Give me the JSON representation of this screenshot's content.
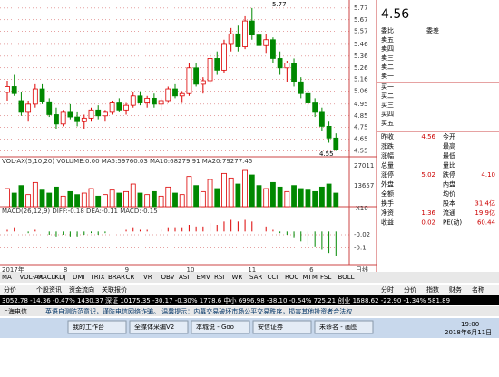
{
  "chart": {
    "info_line": "VOL-AX(5,10,20)  VOLUME:0.00  MA5:59760.03  MA10:68279.91  MA20:79277.45",
    "macd_line": "MACD(26,12,9)  DIFF:-0.18  DEA:-0.11  MACD:-0.15",
    "high_label": "5.77",
    "low_label": "4.55",
    "price_ylim": [
      4.5,
      5.8
    ],
    "price_ticks": [
      5.77,
      5.67,
      5.57,
      5.46,
      5.36,
      5.26,
      5.16,
      5.06,
      4.95,
      4.85,
      4.75,
      4.65,
      4.55
    ],
    "vol_ylim": [
      0,
      27011
    ],
    "vol_ticks": [
      27011,
      13657
    ],
    "vol_unit": "X10",
    "macd_ylim": [
      -0.2,
      0.1
    ],
    "macd_ticks": [
      -0.02,
      -0.1
    ],
    "x_labels": [
      "2017年",
      "8",
      "9",
      "10",
      "11",
      "6"
    ],
    "x_unit": "日线",
    "candles": [
      [
        5.05,
        5.15,
        4.98,
        5.1
      ],
      [
        5.1,
        5.2,
        5.02,
        5.04
      ],
      [
        4.98,
        5.05,
        4.85,
        4.88
      ],
      [
        4.88,
        4.98,
        4.8,
        4.95
      ],
      [
        4.95,
        5.12,
        4.92,
        5.08
      ],
      [
        5.08,
        5.12,
        4.95,
        4.97
      ],
      [
        4.97,
        5.0,
        4.84,
        4.86
      ],
      [
        4.86,
        4.92,
        4.74,
        4.78
      ],
      [
        4.78,
        4.9,
        4.76,
        4.88
      ],
      [
        4.88,
        4.95,
        4.82,
        4.84
      ],
      [
        4.84,
        4.88,
        4.76,
        4.8
      ],
      [
        4.8,
        4.86,
        4.74,
        4.83
      ],
      [
        4.83,
        4.92,
        4.8,
        4.9
      ],
      [
        4.9,
        4.94,
        4.82,
        4.85
      ],
      [
        4.85,
        4.9,
        4.8,
        4.88
      ],
      [
        4.88,
        4.98,
        4.86,
        4.96
      ],
      [
        4.96,
        5.0,
        4.88,
        4.9
      ],
      [
        4.9,
        4.96,
        4.86,
        4.94
      ],
      [
        4.94,
        5.05,
        4.92,
        5.02
      ],
      [
        5.02,
        5.06,
        4.94,
        4.96
      ],
      [
        4.96,
        5.02,
        4.92,
        5.0
      ],
      [
        5.0,
        5.04,
        4.92,
        4.95
      ],
      [
        4.95,
        5.0,
        4.9,
        4.98
      ],
      [
        4.98,
        5.1,
        4.96,
        5.08
      ],
      [
        5.08,
        5.12,
        5.0,
        5.02
      ],
      [
        5.02,
        5.06,
        4.96,
        5.04
      ],
      [
        5.04,
        5.3,
        5.02,
        5.26
      ],
      [
        5.26,
        5.3,
        5.1,
        5.12
      ],
      [
        5.12,
        5.18,
        5.04,
        5.15
      ],
      [
        5.15,
        5.38,
        5.12,
        5.34
      ],
      [
        5.34,
        5.4,
        5.2,
        5.24
      ],
      [
        5.24,
        5.5,
        5.22,
        5.46
      ],
      [
        5.46,
        5.6,
        5.4,
        5.55
      ],
      [
        5.55,
        5.62,
        5.4,
        5.44
      ],
      [
        5.44,
        5.7,
        5.42,
        5.66
      ],
      [
        5.66,
        5.77,
        5.5,
        5.54
      ],
      [
        5.54,
        5.6,
        5.4,
        5.45
      ],
      [
        5.45,
        5.55,
        5.38,
        5.5
      ],
      [
        5.5,
        5.52,
        5.3,
        5.34
      ],
      [
        5.34,
        5.4,
        5.2,
        5.26
      ],
      [
        5.26,
        5.32,
        5.14,
        5.3
      ],
      [
        5.3,
        5.34,
        5.1,
        5.14
      ],
      [
        5.14,
        5.18,
        5.0,
        5.04
      ],
      [
        5.04,
        5.08,
        4.9,
        4.96
      ],
      [
        4.96,
        5.0,
        4.84,
        4.88
      ],
      [
        4.88,
        4.92,
        4.72,
        4.76
      ],
      [
        4.76,
        4.8,
        4.62,
        4.66
      ],
      [
        4.66,
        4.7,
        4.55,
        4.56
      ]
    ],
    "volumes": [
      12000,
      9000,
      14000,
      8000,
      16000,
      11000,
      9000,
      13000,
      7000,
      10000,
      8000,
      9000,
      12000,
      7000,
      8000,
      11000,
      9000,
      10000,
      15000,
      9000,
      8000,
      10000,
      7000,
      13000,
      9000,
      8000,
      20000,
      14000,
      10000,
      18000,
      12000,
      22000,
      19000,
      15000,
      24000,
      21000,
      14000,
      12000,
      16000,
      13000,
      10000,
      14000,
      12000,
      11000,
      10000,
      13000,
      15000,
      9000
    ],
    "macd": [
      0.01,
      0.02,
      0.0,
      -0.01,
      0.01,
      0.0,
      -0.02,
      -0.03,
      -0.02,
      -0.03,
      -0.03,
      -0.02,
      -0.01,
      -0.02,
      -0.01,
      0.0,
      0.0,
      0.01,
      0.02,
      0.01,
      0.01,
      0.0,
      0.01,
      0.02,
      0.02,
      0.02,
      0.04,
      0.03,
      0.03,
      0.05,
      0.04,
      0.06,
      0.07,
      0.06,
      0.07,
      0.06,
      0.04,
      0.03,
      0.01,
      -0.01,
      -0.02,
      -0.04,
      -0.06,
      -0.08,
      -0.09,
      -0.11,
      -0.13,
      -0.15
    ]
  },
  "tabs": [
    "MA",
    "VOL-AX",
    "MACD",
    "KDJ",
    "DMI",
    "TRIX",
    "BRAR",
    "CR",
    "VR",
    "OBV",
    "ASI",
    "EMV",
    "RSI",
    "WR",
    "SAR",
    "CCI",
    "ROC",
    "MTM",
    "FSL",
    "BOLL"
  ],
  "subtabs": [
    "分价",
    "个股资讯",
    "资金流向",
    "关联报价"
  ],
  "index_line": "3052.78 -14.36 -0.47% 1430.37 深证 10175.35 -30.17 -0.30% 1778.6 中小 6996.98 -38.10 -0.54% 725.21 创业 1688.62 -22.90 -1.34% 581.89",
  "status_left": "上海电信",
  "status_msg": "英语自测防范意识，谨防电信网络诈骗。   温馨提示：内幕交易破坏市场公平交易秩序，损害其他投资者合法权",
  "right_tabs": [
    "分时",
    "分价",
    "指数",
    "财务",
    "名称"
  ],
  "taskbar": [
    "我的工作台",
    "全媒体采编V2",
    "本城说 - Goo",
    "安信证券",
    "未命名 - 画图"
  ],
  "clock": "19:00",
  "date": "2018年6月11日",
  "quote": {
    "price": "4.56",
    "ratio": [
      "委比",
      "委差"
    ],
    "sell": [
      "卖五",
      "卖四",
      "卖三",
      "卖二",
      "卖一"
    ],
    "buy": [
      "买一",
      "买二",
      "买三",
      "买四",
      "买五"
    ],
    "rows": [
      [
        "昨收",
        "4.56",
        "今开",
        ""
      ],
      [
        "涨跌",
        "",
        "最高",
        ""
      ],
      [
        "涨幅",
        "",
        "最低",
        ""
      ],
      [
        "总量",
        "",
        "量比",
        ""
      ],
      [
        "涨停",
        "5.02",
        "跌停",
        "4.10"
      ],
      [
        "外盘",
        "",
        "内盘",
        ""
      ],
      [
        "全额",
        "",
        "均价",
        ""
      ],
      [
        "换手",
        "",
        "股本",
        "31.4亿"
      ],
      [
        "净资",
        "1.36",
        "流通",
        "19.9亿"
      ],
      [
        "收益",
        "0.02",
        "PE(动)",
        "60.44"
      ]
    ]
  }
}
